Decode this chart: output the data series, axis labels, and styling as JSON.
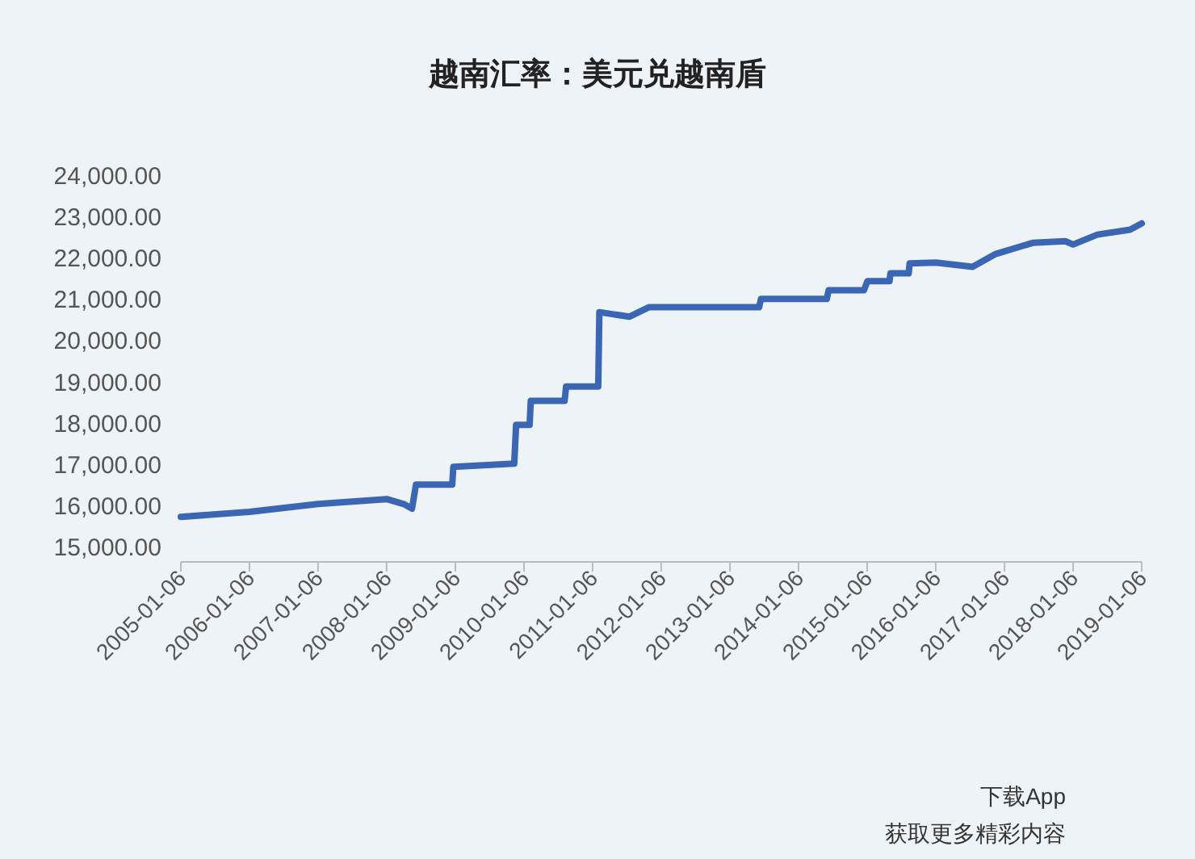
{
  "chart_data": {
    "type": "line",
    "title": "越南汇率：美元兑越南盾",
    "x": [
      "2005-01-06",
      "2006-01-06",
      "2007-01-06",
      "2008-01-06",
      "2008-04-06",
      "2008-05-20",
      "2008-06-10",
      "2008-12-20",
      "2008-12-26",
      "2009-11-15",
      "2009-11-25",
      "2010-02-05",
      "2010-02-11",
      "2010-08-10",
      "2010-08-18",
      "2011-02-05",
      "2011-02-11",
      "2011-07-20",
      "2011-11-01",
      "2013-06-10",
      "2013-06-20",
      "2014-06-05",
      "2014-06-15",
      "2014-12-20",
      "2015-01-07",
      "2015-05-05",
      "2015-05-10",
      "2015-08-15",
      "2015-08-20",
      "2016-01-06",
      "2016-07-20",
      "2016-11-20",
      "2017-06-05",
      "2017-11-25",
      "2018-01-06",
      "2018-05-15",
      "2018-11-05",
      "2019-01-06"
    ],
    "series": [
      {
        "color": "#3a66b3",
        "values": [
          15740,
          15860,
          16050,
          16170,
          16050,
          15940,
          16520,
          16520,
          16950,
          17030,
          17970,
          17970,
          18550,
          18550,
          18900,
          18900,
          20700,
          20590,
          20820,
          20820,
          21020,
          21020,
          21230,
          21230,
          21450,
          21450,
          21640,
          21640,
          21880,
          21900,
          21800,
          22110,
          22380,
          22420,
          22340,
          22580,
          22700,
          22850
        ]
      }
    ],
    "xlim": [
      "2005-01-06",
      "2019-01-06"
    ],
    "xticks": [
      "2005-01-06",
      "2006-01-06",
      "2007-01-06",
      "2008-01-06",
      "2009-01-06",
      "2010-01-06",
      "2011-01-06",
      "2012-01-06",
      "2013-01-06",
      "2014-01-06",
      "2015-01-06",
      "2016-01-06",
      "2017-01-06",
      "2018-01-06",
      "2019-01-06"
    ],
    "ylim": [
      15000,
      24000
    ],
    "yticks": [
      {
        "value": 15000,
        "label": "15,000.00"
      },
      {
        "value": 16000,
        "label": "16,000.00"
      },
      {
        "value": 17000,
        "label": "17,000.00"
      },
      {
        "value": 18000,
        "label": "18,000.00"
      },
      {
        "value": 19000,
        "label": "19,000.00"
      },
      {
        "value": 20000,
        "label": "20,000.00"
      },
      {
        "value": 21000,
        "label": "21,000.00"
      },
      {
        "value": 22000,
        "label": "22,000.00"
      },
      {
        "value": 23000,
        "label": "23,000.00"
      },
      {
        "value": 24000,
        "label": "24,000.00"
      }
    ],
    "grid": false,
    "annotations": [
      "下载App",
      "获取更多精彩内容"
    ]
  }
}
